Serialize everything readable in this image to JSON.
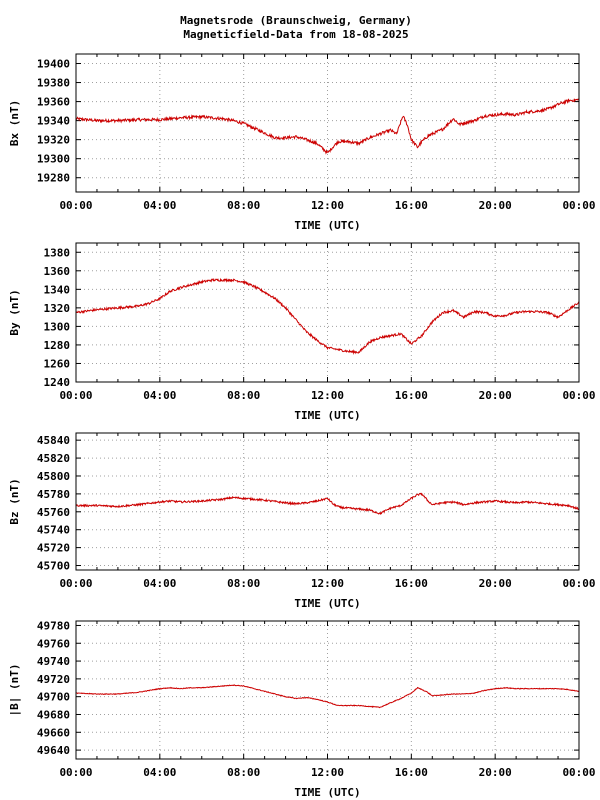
{
  "title_line1": "Magnetsrode (Braunschweig, Germany)",
  "title_line2": "Magneticfield-Data from 18-08-2025",
  "line_color": "#cc0000",
  "chart_data": [
    {
      "type": "line",
      "ylabel": "Bx (nT)",
      "xlabel": "TIME (UTC)",
      "xlim": [
        0,
        24
      ],
      "ylim": [
        19265,
        19410
      ],
      "yticks": [
        19280,
        19300,
        19320,
        19340,
        19360,
        19380,
        19400
      ],
      "xticks": [
        "00:00",
        "04:00",
        "08:00",
        "12:00",
        "16:00",
        "20:00",
        "00:00"
      ],
      "grid": true,
      "noise": 1.5,
      "x": [
        0,
        1,
        2,
        3,
        4,
        5,
        6,
        7,
        7.5,
        8,
        8.5,
        9,
        9.5,
        10,
        10.5,
        11,
        11.5,
        12,
        12.5,
        13,
        13.5,
        14,
        14.5,
        15,
        15.3,
        15.6,
        15.8,
        16,
        16.3,
        16.5,
        16.8,
        17,
        17.5,
        18,
        18.3,
        18.6,
        19,
        19.5,
        20,
        20.5,
        21,
        21.5,
        22,
        22.5,
        23,
        23.5,
        24
      ],
      "y": [
        19342,
        19340,
        19340,
        19341,
        19341,
        19343,
        19344,
        19342,
        19340,
        19337,
        19332,
        19327,
        19322,
        19322,
        19323,
        19320,
        19316,
        19306,
        19318,
        19318,
        19316,
        19322,
        19326,
        19330,
        19326,
        19345,
        19336,
        19320,
        19312,
        19318,
        19324,
        19326,
        19331,
        19342,
        19336,
        19338,
        19340,
        19345,
        19346,
        19347,
        19346,
        19349,
        19350,
        19352,
        19357,
        19361,
        19362
      ]
    },
    {
      "type": "line",
      "ylabel": "By (nT)",
      "xlabel": "TIME (UTC)",
      "xlim": [
        0,
        24
      ],
      "ylim": [
        1240,
        1390
      ],
      "yticks": [
        1240,
        1260,
        1280,
        1300,
        1320,
        1340,
        1360,
        1380
      ],
      "xticks": [
        "00:00",
        "04:00",
        "08:00",
        "12:00",
        "16:00",
        "20:00",
        "00:00"
      ],
      "grid": true,
      "noise": 1.2,
      "x": [
        0,
        1,
        2,
        3,
        3.5,
        4,
        4.5,
        5,
        5.5,
        6,
        6.5,
        7,
        7.5,
        8,
        8.5,
        9,
        9.5,
        10,
        10.5,
        11,
        11.5,
        12,
        12.5,
        13,
        13.5,
        14,
        14.5,
        15,
        15.5,
        16,
        16.5,
        17,
        17.5,
        18,
        18.5,
        19,
        19.5,
        20,
        20.5,
        21,
        21.5,
        22,
        22.5,
        23,
        23.5,
        24
      ],
      "y": [
        1315,
        1318,
        1320,
        1322,
        1325,
        1330,
        1338,
        1342,
        1345,
        1348,
        1350,
        1350,
        1350,
        1348,
        1343,
        1337,
        1330,
        1320,
        1307,
        1294,
        1285,
        1277,
        1275,
        1273,
        1272,
        1283,
        1288,
        1290,
        1292,
        1281,
        1290,
        1305,
        1315,
        1317,
        1310,
        1316,
        1315,
        1311,
        1312,
        1315,
        1316,
        1316,
        1315,
        1310,
        1318,
        1326
      ]
    },
    {
      "type": "line",
      "ylabel": "Bz (nT)",
      "xlabel": "TIME (UTC)",
      "xlim": [
        0,
        24
      ],
      "ylim": [
        45695,
        45848
      ],
      "yticks": [
        45700,
        45720,
        45740,
        45760,
        45780,
        45800,
        45820,
        45840
      ],
      "xticks": [
        "00:00",
        "04:00",
        "08:00",
        "12:00",
        "16:00",
        "20:00",
        "00:00"
      ],
      "grid": true,
      "noise": 1.0,
      "x": [
        0,
        1,
        2,
        3,
        4,
        4.5,
        5,
        6,
        7,
        7.5,
        8,
        9,
        10,
        10.5,
        11,
        11.5,
        12,
        12.3,
        12.6,
        13,
        13.5,
        14,
        14.5,
        15,
        15.5,
        16,
        16.3,
        16.5,
        16.8,
        17,
        17.5,
        18,
        18.5,
        19,
        19.5,
        20,
        20.5,
        21,
        21.5,
        22,
        22.5,
        23,
        23.5,
        24
      ],
      "y": [
        45767,
        45767,
        45766,
        45768,
        45771,
        45772,
        45771,
        45772,
        45774,
        45776,
        45775,
        45773,
        45770,
        45769,
        45770,
        45772,
        45775,
        45768,
        45765,
        45764,
        45763,
        45762,
        45758,
        45764,
        45767,
        45775,
        45779,
        45780,
        45772,
        45768,
        45770,
        45771,
        45768,
        45770,
        45771,
        45772,
        45771,
        45770,
        45771,
        45770,
        45769,
        45768,
        45767,
        45763
      ]
    },
    {
      "type": "line",
      "ylabel": "|B| (nT)",
      "xlabel": "TIME (UTC)",
      "xlim": [
        0,
        24
      ],
      "ylim": [
        49630,
        49785
      ],
      "yticks": [
        49640,
        49660,
        49680,
        49700,
        49720,
        49740,
        49760,
        49780
      ],
      "xticks": [
        "00:00",
        "04:00",
        "08:00",
        "12:00",
        "16:00",
        "20:00",
        "00:00"
      ],
      "grid": true,
      "noise": 0.4,
      "x": [
        0,
        1,
        2,
        3,
        3.5,
        4,
        4.5,
        5,
        5.5,
        6,
        6.5,
        7,
        7.5,
        8,
        8.5,
        9,
        9.5,
        10,
        10.5,
        11,
        11.5,
        12,
        12.5,
        13,
        13.5,
        14,
        14.5,
        15,
        15.5,
        16,
        16.3,
        16.7,
        17,
        17.5,
        18,
        18.5,
        19,
        19.5,
        20,
        20.5,
        21,
        21.5,
        22,
        22.5,
        23,
        23.5,
        24
      ],
      "y": [
        49704,
        49703,
        49703,
        49705,
        49707,
        49709,
        49710,
        49709,
        49710,
        49710,
        49711,
        49712,
        49713,
        49712,
        49709,
        49706,
        49703,
        49700,
        49698,
        49699,
        49697,
        49694,
        49690,
        49690,
        49690,
        49689,
        49688,
        49693,
        49698,
        49704,
        49710,
        49706,
        49701,
        49702,
        49703,
        49703,
        49704,
        49707,
        49709,
        49710,
        49709,
        49709,
        49709,
        49709,
        49709,
        49708,
        49706
      ]
    }
  ]
}
